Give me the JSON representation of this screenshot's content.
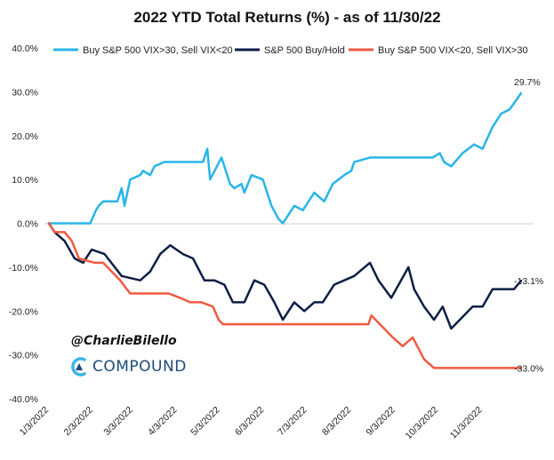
{
  "chart_data": {
    "type": "line",
    "title": "2022 YTD Total Returns (%) - as of 11/30/22",
    "ylim": [
      -40,
      40
    ],
    "y_ticks": [
      "40.0%",
      "30.0%",
      "20.0%",
      "10.0%",
      "0.0%",
      "-10.0%",
      "-20.0%",
      "-30.0%",
      "-40.0%"
    ],
    "y_tick_values": [
      40,
      30,
      20,
      10,
      0,
      -10,
      -20,
      -30,
      -40
    ],
    "x_ticks": [
      "1/3/2022",
      "2/3/2022",
      "3/3/2022",
      "4/3/2022",
      "5/3/2022",
      "6/3/2022",
      "7/3/2022",
      "8/3/2022",
      "9/3/2022",
      "10/3/2022",
      "11/3/2022"
    ],
    "grid": false,
    "legend_position": "top",
    "end_labels": [
      "29.7%",
      "-13.1%",
      "-33.0%"
    ],
    "series": [
      {
        "name": "Buy S&P 500 VIX>30, Sell VIX<20",
        "color": "#29b5e8",
        "x": [
          "2022-01-03",
          "2022-01-10",
          "2022-01-20",
          "2022-01-27",
          "2022-02-01",
          "2022-02-05",
          "2022-02-07",
          "2022-02-10",
          "2022-02-20",
          "2022-02-23",
          "2022-02-25",
          "2022-03-01",
          "2022-03-08",
          "2022-03-10",
          "2022-03-15",
          "2022-03-18",
          "2022-03-25",
          "2022-04-01",
          "2022-04-10",
          "2022-04-21",
          "2022-04-24",
          "2022-04-26",
          "2022-05-04",
          "2022-05-10",
          "2022-05-13",
          "2022-05-18",
          "2022-05-20",
          "2022-05-25",
          "2022-06-02",
          "2022-06-08",
          "2022-06-13",
          "2022-06-16",
          "2022-06-24",
          "2022-06-30",
          "2022-07-08",
          "2022-07-15",
          "2022-07-21",
          "2022-07-29",
          "2022-08-03",
          "2022-08-05",
          "2022-08-16",
          "2022-08-23",
          "2022-09-12",
          "2022-09-20",
          "2022-09-29",
          "2022-10-04",
          "2022-10-07",
          "2022-10-12",
          "2022-10-20",
          "2022-10-28",
          "2022-11-03",
          "2022-11-10",
          "2022-11-16",
          "2022-11-22",
          "2022-11-30"
        ],
        "values": [
          0,
          0,
          0,
          0,
          0,
          3,
          4,
          5,
          5,
          8,
          4,
          10,
          11,
          12,
          11,
          13,
          14,
          14,
          14,
          14,
          17,
          10,
          15,
          9,
          8,
          9,
          7,
          11,
          10,
          4,
          1,
          0,
          4,
          3,
          7,
          5,
          9,
          11,
          12,
          14,
          15,
          15,
          15,
          15,
          15,
          16,
          14,
          13,
          16,
          18,
          17,
          22,
          25,
          26,
          29.7
        ]
      },
      {
        "name": "S&P 500 Buy/Hold",
        "color": "#0e1f45",
        "x": [
          "2022-01-03",
          "2022-01-07",
          "2022-01-14",
          "2022-01-21",
          "2022-01-27",
          "2022-02-02",
          "2022-02-11",
          "2022-02-23",
          "2022-03-08",
          "2022-03-15",
          "2022-03-22",
          "2022-03-29",
          "2022-04-07",
          "2022-04-14",
          "2022-04-22",
          "2022-04-29",
          "2022-05-06",
          "2022-05-12",
          "2022-05-20",
          "2022-05-27",
          "2022-06-03",
          "2022-06-10",
          "2022-06-16",
          "2022-06-24",
          "2022-07-01",
          "2022-07-08",
          "2022-07-14",
          "2022-07-22",
          "2022-07-29",
          "2022-08-05",
          "2022-08-16",
          "2022-08-22",
          "2022-08-31",
          "2022-09-12",
          "2022-09-16",
          "2022-09-23",
          "2022-09-30",
          "2022-10-06",
          "2022-10-12",
          "2022-10-21",
          "2022-10-27",
          "2022-11-03",
          "2022-11-10",
          "2022-11-18",
          "2022-11-25",
          "2022-11-30"
        ],
        "values": [
          0,
          -2,
          -4,
          -8,
          -9,
          -6,
          -7,
          -12,
          -13,
          -11,
          -7,
          -5,
          -7,
          -8,
          -13,
          -13,
          -14,
          -18,
          -18,
          -13,
          -14,
          -18,
          -22,
          -18,
          -20,
          -18,
          -18,
          -14,
          -13,
          -12,
          -9,
          -13,
          -17,
          -10,
          -15,
          -19,
          -22,
          -19,
          -24,
          -21,
          -19,
          -19,
          -15,
          -15,
          -15,
          -13.1
        ]
      },
      {
        "name": "Buy S&P 500 VIX<20, Sell VIX>30",
        "color": "#f15a40",
        "x": [
          "2022-01-03",
          "2022-01-07",
          "2022-01-14",
          "2022-01-19",
          "2022-01-24",
          "2022-02-04",
          "2022-02-10",
          "2022-02-16",
          "2022-02-22",
          "2022-03-01",
          "2022-03-15",
          "2022-03-28",
          "2022-04-05",
          "2022-04-12",
          "2022-04-20",
          "2022-04-28",
          "2022-05-02",
          "2022-05-05",
          "2022-05-12",
          "2022-06-02",
          "2022-06-21",
          "2022-07-05",
          "2022-07-20",
          "2022-08-05",
          "2022-08-15",
          "2022-08-17",
          "2022-08-26",
          "2022-09-01",
          "2022-09-08",
          "2022-09-15",
          "2022-09-23",
          "2022-09-30",
          "2022-10-31",
          "2022-11-30"
        ],
        "values": [
          0,
          -2,
          -2,
          -4,
          -8,
          -9,
          -9,
          -11,
          -13,
          -16,
          -16,
          -16,
          -17,
          -18,
          -18,
          -19,
          -22,
          -23,
          -23,
          -23,
          -23,
          -23,
          -23,
          -23,
          -23,
          -21,
          -24,
          -26,
          -28,
          -26,
          -31,
          -33,
          -33,
          -33
        ]
      }
    ]
  },
  "watermark": {
    "handle": "@CharlieBilello",
    "company": "COMPOUND"
  }
}
